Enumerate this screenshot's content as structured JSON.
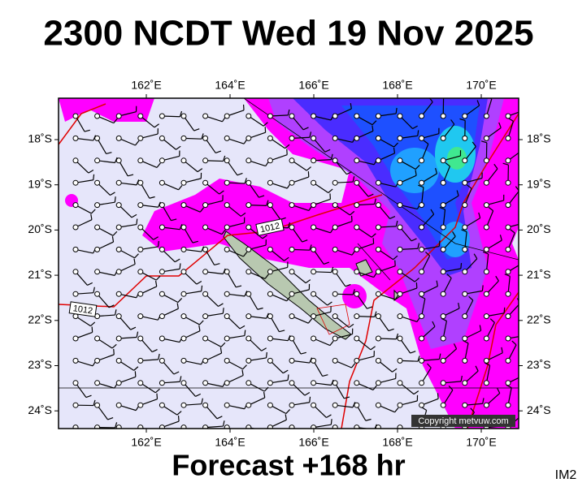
{
  "title": "2300 NCDT Wed 19 Nov 2025",
  "map": {
    "lon_labels": [
      "162˚E",
      "164˚E",
      "166˚E",
      "168˚E",
      "170˚E"
    ],
    "lat_labels": [
      "18˚S",
      "19˚S",
      "20˚S",
      "21˚S",
      "22˚S",
      "23˚S",
      "24˚S"
    ],
    "isobar_labels": [
      "1012",
      "1012"
    ],
    "copyright": "Copyright metvuw.com"
  },
  "footer": "Forecast +168 hr",
  "corner_label": "IM2"
}
